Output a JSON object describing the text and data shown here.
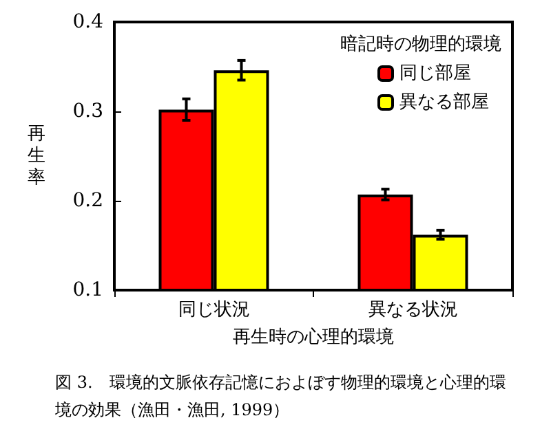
{
  "chart_data": {
    "type": "bar",
    "categories": [
      "同じ状況",
      "異なる状況"
    ],
    "series": [
      {
        "name": "同じ部屋",
        "color": "#ff0000",
        "values": [
          0.302,
          0.207
        ],
        "errors": [
          0.012,
          0.006
        ]
      },
      {
        "name": "異なる部屋",
        "color": "#ffff00",
        "values": [
          0.346,
          0.162
        ],
        "errors": [
          0.011,
          0.005
        ]
      }
    ],
    "ylim": [
      0.1,
      0.4
    ],
    "yticks": [
      0.1,
      0.2,
      0.3,
      0.4
    ],
    "xlabel": "再生時の心理的環境",
    "ylabel": "再生率",
    "legend_title": "暗記時の物理的環境",
    "legend": "top right",
    "grid": false,
    "annotations": [
      "図 3.　環境的文脈依存記憶におよぼす物理的環境と心理的環境の効果（漁田・漁田, 1999）"
    ]
  }
}
